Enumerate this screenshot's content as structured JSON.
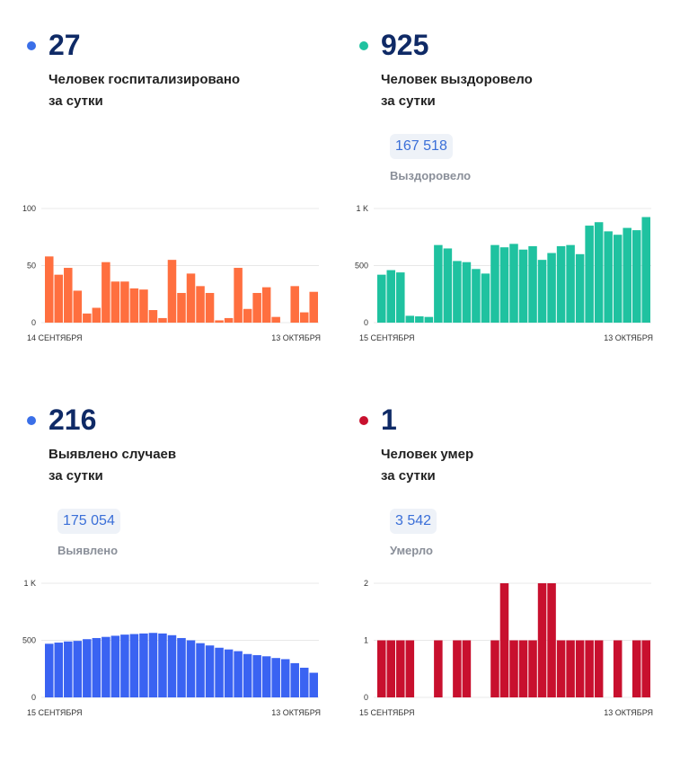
{
  "panels": [
    {
      "id": "hospitalized",
      "dot_color": "#3a6fe8",
      "value": "27",
      "label_line1": "Человек госпитализировано",
      "label_line2": "за сутки",
      "total": "",
      "total_label": ""
    },
    {
      "id": "recovered",
      "dot_color": "#1fc2a0",
      "value": "925",
      "label_line1": "Человек выздоровело",
      "label_line2": "за сутки",
      "total": "167 518",
      "total_label": "Выздоровело"
    },
    {
      "id": "cases",
      "dot_color": "#3a6fe8",
      "value": "216",
      "label_line1": "Выявлено случаев",
      "label_line2": "за сутки",
      "total": "175 054",
      "total_label": "Выявлено"
    },
    {
      "id": "deaths",
      "dot_color": "#c8102e",
      "value": "1",
      "label_line1": "Человек умер",
      "label_line2": "за сутки",
      "total": "3 542",
      "total_label": "Умерло"
    }
  ],
  "chart_data": [
    {
      "type": "bar",
      "color": "#ff6f3f",
      "x_start_label": "14 СЕНТЯБРЯ",
      "x_end_label": "13 ОКТЯБРЯ",
      "y_ticks": [
        0,
        50,
        100
      ],
      "y_tick_labels": [
        "0",
        "50",
        "100"
      ],
      "ylim": [
        0,
        100
      ],
      "values": [
        58,
        42,
        48,
        28,
        8,
        13,
        53,
        36,
        36,
        30,
        29,
        11,
        4,
        55,
        26,
        43,
        32,
        26,
        2,
        4,
        48,
        12,
        26,
        31,
        5,
        0,
        32,
        9,
        27
      ]
    },
    {
      "type": "bar",
      "color": "#1fc2a0",
      "x_start_label": "15 СЕНТЯБРЯ",
      "x_end_label": "13 ОКТЯБРЯ",
      "y_ticks": [
        0,
        500,
        1000
      ],
      "y_tick_labels": [
        "0",
        "500",
        "1 K"
      ],
      "ylim": [
        0,
        1000
      ],
      "values": [
        420,
        460,
        440,
        60,
        55,
        50,
        680,
        650,
        540,
        530,
        470,
        430,
        680,
        660,
        690,
        640,
        670,
        550,
        610,
        670,
        680,
        600,
        850,
        880,
        800,
        770,
        830,
        810,
        925
      ]
    },
    {
      "type": "bar",
      "color": "#3a63f2",
      "x_start_label": "15 СЕНТЯБРЯ",
      "x_end_label": "13 ОКТЯБРЯ",
      "y_ticks": [
        0,
        500,
        1000
      ],
      "y_tick_labels": [
        "0",
        "500",
        "1 K"
      ],
      "ylim": [
        0,
        1000
      ],
      "values": [
        470,
        480,
        490,
        495,
        510,
        520,
        530,
        540,
        550,
        555,
        560,
        565,
        560,
        545,
        520,
        500,
        475,
        455,
        435,
        420,
        405,
        380,
        370,
        360,
        345,
        335,
        300,
        260,
        216
      ]
    },
    {
      "type": "bar",
      "color": "#c8102e",
      "x_start_label": "15 СЕНТЯБРЯ",
      "x_end_label": "13 ОКТЯБРЯ",
      "y_ticks": [
        0,
        1,
        2
      ],
      "y_tick_labels": [
        "0",
        "1",
        "2"
      ],
      "ylim": [
        0,
        2
      ],
      "values": [
        1,
        1,
        1,
        1,
        0,
        0,
        1,
        0,
        1,
        1,
        0,
        0,
        1,
        2,
        1,
        1,
        1,
        2,
        2,
        1,
        1,
        1,
        1,
        1,
        0,
        1,
        0,
        1,
        1
      ]
    }
  ]
}
